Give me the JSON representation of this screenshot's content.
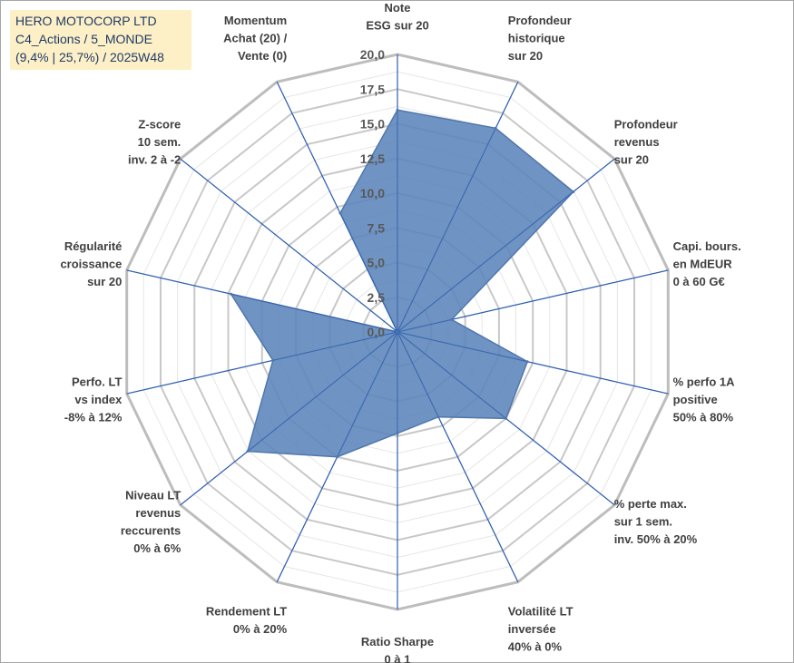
{
  "title_box": {
    "line1": "HERO MOTOCORP LTD",
    "line2": "C4_Actions / 5_MONDE",
    "line3": "(9,4% | 25,7%) / 2025W48"
  },
  "colors": {
    "grid": "#c8c8c8",
    "spoke": "#2f5fb0",
    "fill": "#5b84b9",
    "fill_stroke": "#4f77ad"
  },
  "chart_data": {
    "type": "radar",
    "rmax": 20,
    "tick_values": [
      0,
      2.5,
      5,
      7.5,
      10,
      12.5,
      15,
      17.5,
      20
    ],
    "tick_labels": [
      "0,0",
      "2,5",
      "5,0",
      "7,5",
      "10,0",
      "12,5",
      "15,0",
      "17,5",
      "20,0"
    ],
    "axes": [
      {
        "label": [
          "Note",
          "ESG sur 20"
        ],
        "value": 16.0
      },
      {
        "label": [
          "Profondeur",
          "historique",
          "sur 20"
        ],
        "value": 16.3
      },
      {
        "label": [
          "Profondeur",
          "revenus",
          "sur 20"
        ],
        "value": 16.2
      },
      {
        "label": [
          "Capi. bours.",
          "en MdEUR",
          "0 à 60 G€"
        ],
        "value": 4.0
      },
      {
        "label": [
          "% perfo 1A",
          "positive",
          "50% à 80%"
        ],
        "value": 9.6
      },
      {
        "label": [
          "% perte max.",
          "sur 1 sem.",
          "inv. 50% à 20%"
        ],
        "value": 10.0
      },
      {
        "label": [
          "Volatilité LT",
          "inversée",
          "40% à 0%"
        ],
        "value": 6.8
      },
      {
        "label": [
          "Ratio Sharpe",
          "0 à 1"
        ],
        "value": 7.3
      },
      {
        "label": [
          "Rendement LT",
          "0% à 20%"
        ],
        "value": 10.0
      },
      {
        "label": [
          "Niveau LT",
          "revenus",
          "reccurents",
          "0% à 6%"
        ],
        "value": 13.8
      },
      {
        "label": [
          "Perfo. LT",
          "vs index",
          "-8% à 12%"
        ],
        "value": 9.2
      },
      {
        "label": [
          "Régularité",
          "croissance",
          "sur 20"
        ],
        "value": 12.3
      },
      {
        "label": [
          "Z-score",
          "10 sem.",
          "inv. 2 à -2"
        ],
        "value": 0.0
      },
      {
        "label": [
          "Momentum",
          "Achat (20) /",
          "Vente (0)"
        ],
        "value": 9.5
      }
    ]
  }
}
